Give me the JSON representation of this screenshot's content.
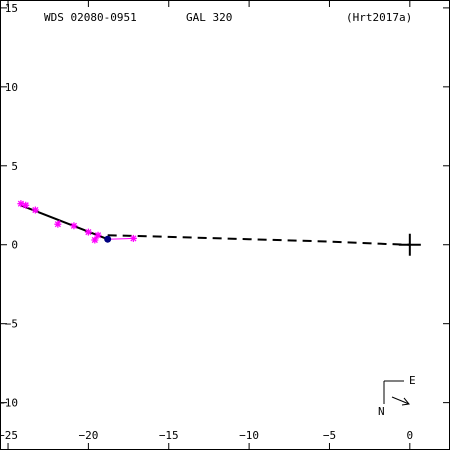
{
  "chart_data": {
    "type": "scatter",
    "header": {
      "left": "WDS 02080-0951",
      "center": "GAL 320",
      "right": "(Hrt2017a)"
    },
    "xlim": [
      -25.5,
      2.5
    ],
    "ylim": [
      -13,
      15.5
    ],
    "x_ticks": [
      -25,
      -20,
      -15,
      -10,
      -5,
      0
    ],
    "x_tick_labels": [
      "−25",
      "−20",
      "−15",
      "−10",
      "−5",
      "0"
    ],
    "y_ticks": [
      15,
      10,
      5,
      0,
      -5,
      -10
    ],
    "y_tick_labels": [
      "15",
      "10",
      "5",
      "0",
      "−5",
      "−10"
    ],
    "compass": {
      "east_label": "E",
      "north_label": "N"
    },
    "colors": {
      "measures": "#ff00ff",
      "orbit": "#000000",
      "residuals": "#ff00ff",
      "primary": "#000000",
      "latest": "#000080"
    },
    "primary": {
      "x": 0,
      "y": 0
    },
    "measures": [
      {
        "x": -24.2,
        "y": 2.6
      },
      {
        "x": -23.9,
        "y": 2.5
      },
      {
        "x": -23.3,
        "y": 2.2
      },
      {
        "x": -21.9,
        "y": 1.3
      },
      {
        "x": -20.9,
        "y": 1.2
      },
      {
        "x": -20.0,
        "y": 0.8
      },
      {
        "x": -19.6,
        "y": 0.3
      },
      {
        "x": -19.4,
        "y": 0.6
      },
      {
        "x": -17.2,
        "y": 0.4
      }
    ],
    "orbit_fit": [
      {
        "x": -24.2,
        "y": 2.5
      },
      {
        "x": -18.8,
        "y": 0.35
      }
    ],
    "latest": {
      "x": -18.8,
      "y": 0.35
    },
    "predicted_path": [
      {
        "x": -18.8,
        "y": 0.6
      },
      {
        "x": -15.0,
        "y": 0.5
      },
      {
        "x": -10.0,
        "y": 0.35
      },
      {
        "x": -5.0,
        "y": 0.2
      },
      {
        "x": -1.5,
        "y": 0.05
      },
      {
        "x": 0,
        "y": 0
      }
    ]
  }
}
